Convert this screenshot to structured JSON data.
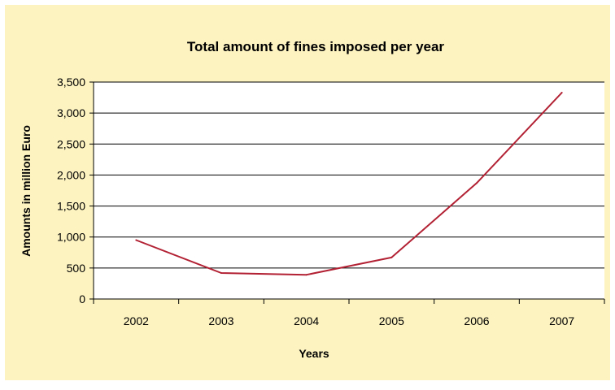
{
  "chart_data": {
    "type": "line",
    "title": "Total amount of fines imposed per year",
    "xlabel": "Years",
    "ylabel": "Amounts in million Euro",
    "categories": [
      "2002",
      "2003",
      "2004",
      "2005",
      "2006",
      "2007"
    ],
    "series": [
      {
        "values": [
          950,
          420,
          390,
          670,
          1870,
          3330
        ],
        "color": "#b22234"
      }
    ],
    "ylim": [
      0,
      3500
    ],
    "yticks": [
      0,
      500,
      1000,
      1500,
      2000,
      2500,
      3000,
      3500
    ],
    "ytick_labels": [
      "0",
      "500",
      "1,000",
      "1,500",
      "2,000",
      "2,500",
      "3,000",
      "3,500"
    ],
    "grid": true,
    "background": "#fdf3c0",
    "plot_background": "#ffffff"
  }
}
